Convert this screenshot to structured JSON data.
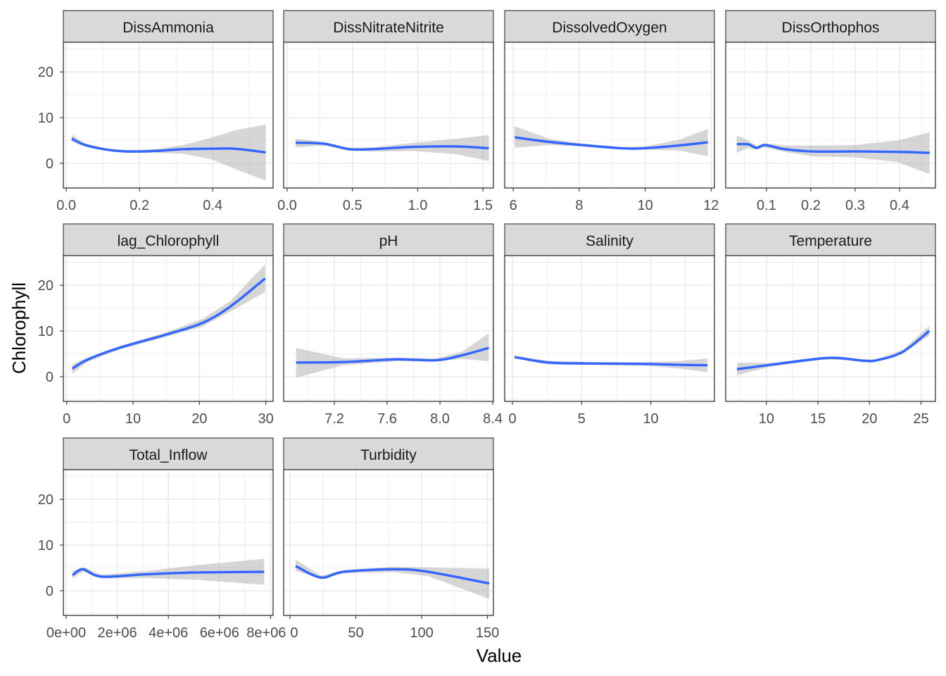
{
  "chart_data": {
    "type": "line",
    "layout": "facet-wrap",
    "xlabel": "Value",
    "ylabel": "Chlorophyll",
    "ylim": [
      -5.4,
      26.5
    ],
    "yticks": [
      0,
      10,
      20
    ],
    "grid": true,
    "colors": {
      "line": "#3366ff",
      "ribbon": "#999999",
      "strip": "#d9d9d9",
      "border": "#333333",
      "grid": "#ebebeb"
    },
    "facets": [
      {
        "title": "DissAmmonia",
        "xlim": [
          -0.008,
          0.565
        ],
        "xticks": [
          0,
          0.2,
          0.4
        ],
        "xtick_labels": [
          "0.0",
          "0.2",
          "0.4"
        ],
        "x": [
          0.015,
          0.05,
          0.11,
          0.165,
          0.24,
          0.32,
          0.4,
          0.46,
          0.545
        ],
        "y": [
          5.4,
          4.05,
          3.0,
          2.6,
          2.7,
          3.1,
          3.2,
          3.2,
          2.4
        ],
        "lo": [
          4.8,
          3.7,
          2.7,
          2.3,
          2.3,
          2.1,
          0.8,
          -1.2,
          -3.8
        ],
        "hi": [
          6.3,
          4.4,
          3.3,
          2.9,
          3.1,
          4.0,
          5.7,
          7.2,
          8.5
        ]
      },
      {
        "title": "DissNitrateNitrite",
        "xlim": [
          -0.027,
          1.58
        ],
        "xticks": [
          0,
          0.5,
          1.0,
          1.5
        ],
        "xtick_labels": [
          "0.0",
          "0.5",
          "1.0",
          "1.5"
        ],
        "x": [
          0.065,
          0.28,
          0.475,
          0.65,
          0.97,
          1.3,
          1.545
        ],
        "y": [
          4.5,
          4.3,
          3.1,
          3.1,
          3.6,
          3.7,
          3.3
        ],
        "lo": [
          3.5,
          3.9,
          2.8,
          2.6,
          2.7,
          2.0,
          0.5
        ],
        "hi": [
          5.4,
          4.7,
          3.4,
          3.5,
          4.5,
          5.4,
          6.2
        ]
      },
      {
        "title": "DissolvedOxygen",
        "xlim": [
          5.74,
          12.1
        ],
        "xticks": [
          6,
          8,
          10,
          12
        ],
        "xtick_labels": [
          "6",
          "8",
          "10",
          "12"
        ],
        "x": [
          6.04,
          7.07,
          8.09,
          9.29,
          9.97,
          11.0,
          11.9
        ],
        "y": [
          5.7,
          4.7,
          4.0,
          3.3,
          3.3,
          3.9,
          4.6
        ],
        "lo": [
          3.4,
          4.0,
          3.7,
          3.0,
          3.0,
          2.8,
          1.6
        ],
        "hi": [
          8.15,
          5.4,
          4.3,
          3.6,
          3.7,
          5.1,
          7.5
        ]
      },
      {
        "title": "DissOrthophos",
        "xlim": [
          0.008,
          0.481
        ],
        "xticks": [
          0.1,
          0.2,
          0.3,
          0.4
        ],
        "xtick_labels": [
          "0.1",
          "0.2",
          "0.3",
          "0.4"
        ],
        "x": [
          0.033,
          0.059,
          0.078,
          0.097,
          0.141,
          0.205,
          0.3,
          0.395,
          0.468
        ],
        "y": [
          4.2,
          4.15,
          3.4,
          4.0,
          3.1,
          2.6,
          2.6,
          2.5,
          2.3
        ],
        "lo": [
          2.3,
          3.3,
          3.0,
          3.5,
          2.5,
          1.5,
          1.3,
          0.3,
          -2.4
        ],
        "hi": [
          6.1,
          5.0,
          3.8,
          4.4,
          3.9,
          3.9,
          4.0,
          5.0,
          6.8
        ]
      },
      {
        "title": "lag_Chlorophyll",
        "xlim": [
          -0.5,
          31.1
        ],
        "xticks": [
          0,
          10,
          20,
          30
        ],
        "xtick_labels": [
          "0",
          "10",
          "20",
          "30"
        ],
        "x": [
          0.85,
          3.1,
          7.7,
          15.4,
          20.5,
          24.7,
          29.9
        ],
        "y": [
          1.75,
          3.7,
          6.2,
          9.4,
          11.8,
          15.4,
          21.5
        ],
        "lo": [
          0.6,
          3.2,
          5.8,
          8.9,
          11.0,
          14.3,
          18.5
        ],
        "hi": [
          2.7,
          4.2,
          6.6,
          9.9,
          12.7,
          16.6,
          24.6
        ]
      },
      {
        "title": "pH",
        "xlim": [
          6.816,
          8.405
        ],
        "xticks": [
          7.2,
          7.6,
          8.0,
          8.4
        ],
        "xtick_labels": [
          "7.2",
          "7.6",
          "8.0",
          "8.4"
        ],
        "x": [
          6.91,
          7.27,
          7.67,
          7.97,
          8.17,
          8.37
        ],
        "y": [
          3.1,
          3.2,
          3.8,
          3.6,
          4.7,
          6.3
        ],
        "lo": [
          -0.2,
          2.5,
          3.4,
          3.3,
          3.9,
          3.4
        ],
        "hi": [
          6.3,
          4.0,
          4.2,
          4.0,
          5.5,
          9.5
        ]
      },
      {
        "title": "Salinity",
        "xlim": [
          -0.56,
          14.6
        ],
        "xticks": [
          0,
          5,
          10
        ],
        "xtick_labels": [
          "0",
          "5",
          "10"
        ],
        "x": [
          0.15,
          2.6,
          5.5,
          9.5,
          12.0,
          14.1
        ],
        "y": [
          4.3,
          3.1,
          2.9,
          2.8,
          2.6,
          2.5
        ],
        "lo": [
          4.0,
          2.7,
          2.6,
          2.4,
          1.8,
          1.0
        ],
        "hi": [
          4.6,
          3.5,
          3.2,
          3.2,
          3.4,
          4.0
        ]
      },
      {
        "title": "Temperature",
        "xlim": [
          6.05,
          26.4
        ],
        "xticks": [
          10,
          15,
          20,
          25
        ],
        "xtick_labels": [
          "10",
          "15",
          "20",
          "25"
        ],
        "x": [
          7.14,
          10.4,
          15.3,
          17.2,
          19.4,
          20.7,
          23.2,
          25.8
        ],
        "y": [
          1.65,
          2.6,
          4.0,
          4.05,
          3.5,
          3.6,
          5.4,
          10.0
        ],
        "lo": [
          0.3,
          2.2,
          3.7,
          3.7,
          3.2,
          3.3,
          5.0,
          9.0
        ],
        "hi": [
          3.1,
          3.0,
          4.3,
          4.4,
          3.8,
          3.9,
          5.8,
          11.1
        ]
      },
      {
        "title": "Total_Inflow",
        "xlim": [
          -110000,
          8100000
        ],
        "xticks": [
          0,
          2000000,
          4000000,
          6000000,
          8000000
        ],
        "xtick_labels": [
          "0e+00",
          "2e+06",
          "4e+06",
          "6e+06",
          "8e+06"
        ],
        "x": [
          250000,
          660000,
          1370000,
          3130000,
          5100000,
          7750000
        ],
        "y": [
          3.4,
          4.7,
          3.1,
          3.6,
          4.0,
          4.15
        ],
        "lo": [
          2.7,
          4.2,
          2.7,
          2.8,
          2.4,
          1.3
        ],
        "hi": [
          4.3,
          5.2,
          3.5,
          4.3,
          5.6,
          7.0
        ]
      },
      {
        "title": "Turbidity",
        "xlim": [
          -4.8,
          154.5
        ],
        "xticks": [
          0,
          50,
          100,
          150
        ],
        "xtick_labels": [
          "0",
          "50",
          "100",
          "150"
        ],
        "x": [
          4.3,
          23.5,
          40.6,
          79,
          105,
          151.3
        ],
        "y": [
          5.4,
          2.9,
          4.15,
          4.7,
          4.15,
          1.6
        ],
        "lo": [
          4.4,
          2.5,
          3.8,
          4.1,
          3.2,
          -1.8
        ],
        "hi": [
          6.8,
          3.3,
          4.5,
          5.3,
          5.1,
          4.8
        ]
      }
    ]
  }
}
